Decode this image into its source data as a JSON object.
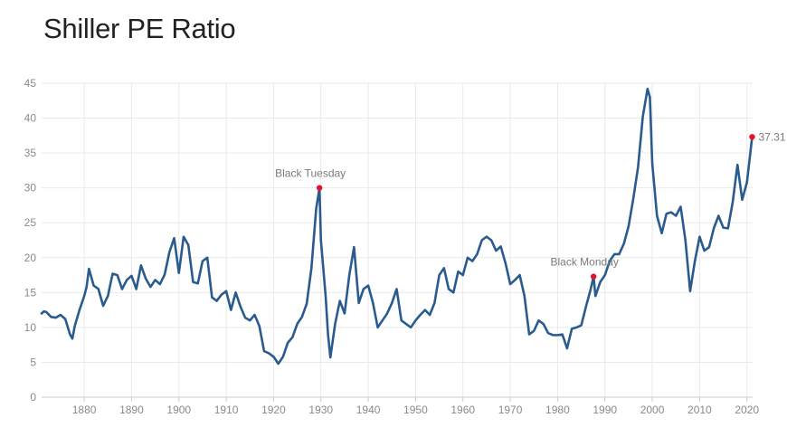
{
  "title": "Shiller PE Ratio",
  "chart_data": {
    "type": "line",
    "title": "Shiller PE Ratio",
    "xlabel": "",
    "ylabel": "",
    "xlim": [
      1871,
      2021.2
    ],
    "ylim": [
      0,
      45
    ],
    "grid": true,
    "line_color": "#2a5b8f",
    "marker_color": "#e8112d",
    "x_ticks": [
      "1880",
      "1890",
      "1900",
      "1910",
      "1920",
      "1930",
      "1940",
      "1950",
      "1960",
      "1970",
      "1980",
      "1990",
      "2000",
      "2010",
      "2020"
    ],
    "y_ticks": [
      "0",
      "5",
      "10",
      "15",
      "20",
      "25",
      "30",
      "35",
      "40",
      "45"
    ],
    "series": [
      {
        "x": [
          1871,
          1871.5,
          1872,
          1873,
          1874,
          1875,
          1876,
          1877,
          1877.5,
          1878,
          1879,
          1880,
          1880.5,
          1881,
          1882,
          1883,
          1884,
          1885,
          1886,
          1887,
          1888,
          1889,
          1890,
          1891,
          1892,
          1893,
          1894,
          1895,
          1896,
          1897,
          1898,
          1899,
          1900,
          1901,
          1902,
          1903,
          1904,
          1905,
          1906,
          1907,
          1908,
          1909,
          1910,
          1911,
          1912,
          1913,
          1914,
          1915,
          1916,
          1917,
          1918,
          1919,
          1920,
          1921,
          1922,
          1923,
          1924,
          1925,
          1926,
          1927,
          1928,
          1929,
          1929.7,
          1930,
          1931,
          1931.5,
          1932,
          1933,
          1934,
          1935,
          1936,
          1937,
          1938,
          1939,
          1940,
          1941,
          1942,
          1943,
          1944,
          1945,
          1946,
          1947,
          1948,
          1949,
          1950,
          1951,
          1952,
          1953,
          1954,
          1955,
          1956,
          1957,
          1958,
          1959,
          1960,
          1961,
          1962,
          1963,
          1964,
          1965,
          1966,
          1967,
          1968,
          1969,
          1970,
          1971,
          1972,
          1973,
          1974,
          1975,
          1976,
          1977,
          1978,
          1979,
          1980,
          1981,
          1982,
          1983,
          1984,
          1985,
          1986,
          1987,
          1987.6,
          1988,
          1989,
          1990,
          1991,
          1992,
          1993,
          1994,
          1995,
          1996,
          1997,
          1998,
          1999,
          1999.5,
          2000,
          2001,
          2002,
          2003,
          2004,
          2005,
          2006,
          2007,
          2008,
          2009,
          2010,
          2011,
          2012,
          2013,
          2014,
          2015,
          2016,
          2017,
          2018,
          2019,
          2020,
          2021.1
        ],
        "values": [
          12.0,
          12.3,
          12.2,
          11.5,
          11.4,
          11.8,
          11.2,
          9.0,
          8.4,
          10.2,
          12.5,
          14.5,
          15.8,
          18.4,
          16.0,
          15.5,
          13.1,
          14.5,
          17.7,
          17.5,
          15.5,
          16.8,
          17.4,
          15.5,
          18.9,
          17.0,
          15.8,
          16.8,
          16.2,
          17.6,
          20.8,
          22.8,
          17.8,
          23.0,
          21.8,
          16.5,
          16.3,
          19.5,
          20.0,
          14.3,
          13.8,
          14.7,
          15.2,
          12.5,
          15.0,
          13.0,
          11.4,
          11.0,
          11.8,
          10.2,
          6.6,
          6.3,
          5.8,
          4.8,
          5.8,
          7.8,
          8.6,
          10.5,
          11.5,
          13.4,
          18.5,
          27.0,
          30.0,
          22.5,
          14.5,
          9.0,
          5.7,
          10.5,
          13.8,
          12.0,
          17.5,
          21.5,
          13.5,
          15.5,
          16.0,
          13.5,
          10.0,
          11.0,
          12.0,
          13.5,
          15.5,
          11.0,
          10.5,
          10.0,
          11.0,
          11.8,
          12.5,
          11.8,
          13.5,
          17.5,
          18.5,
          15.5,
          15.0,
          18.0,
          17.5,
          20.0,
          19.5,
          20.5,
          22.5,
          23.0,
          22.5,
          21.0,
          21.6,
          19.2,
          16.2,
          16.8,
          17.5,
          14.5,
          9.0,
          9.5,
          11.0,
          10.5,
          9.2,
          8.9,
          8.9,
          9.0,
          7.0,
          9.8,
          10.0,
          10.3,
          13.0,
          15.5,
          17.3,
          14.5,
          16.5,
          17.5,
          19.5,
          20.5,
          20.5,
          22.0,
          24.5,
          28.5,
          33.0,
          40.2,
          44.2,
          43.0,
          33.5,
          26.0,
          23.5,
          26.3,
          26.5,
          26.0,
          27.3,
          22.5,
          15.2,
          19.5,
          23.0,
          21.0,
          21.5,
          24.2,
          26.0,
          24.3,
          24.2,
          28.0,
          33.3,
          28.3,
          30.8,
          37.31
        ]
      }
    ],
    "annotations": [
      {
        "label": "Black Tuesday",
        "x": 1929.7,
        "y": 30.0
      },
      {
        "label": "Black Monday",
        "x": 1987.6,
        "y": 17.3
      },
      {
        "label": "37.31",
        "x": 2021.1,
        "y": 37.31
      }
    ]
  }
}
